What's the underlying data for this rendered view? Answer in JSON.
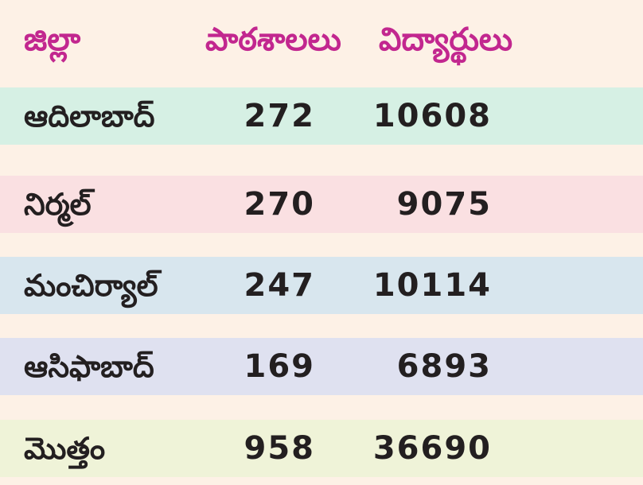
{
  "header": {
    "district": "జిల్లా",
    "schools": "పాఠశాలలు",
    "students": "విద్యార్థులు"
  },
  "rows": [
    {
      "district": "ఆదిలాబాద్",
      "schools": "272",
      "students": "10608",
      "color": "#d6f0e4"
    },
    {
      "district": "నిర్మల్",
      "schools": "270",
      "students": "9075",
      "color": "#fae0e2"
    },
    {
      "district": "మంచిర్యాల్",
      "schools": "247",
      "students": "10114",
      "color": "#d8e6ee"
    },
    {
      "district": "ఆసిఫాబాద్",
      "schools": "169",
      "students": "6893",
      "color": "#dfe1f0"
    },
    {
      "district": "మొత్తం",
      "schools": "958",
      "students": "36690",
      "color": "#eff3d8"
    }
  ],
  "colors": {
    "header_text": "#c2278f",
    "body_text": "#231f20",
    "background": "#fdf1e6"
  }
}
